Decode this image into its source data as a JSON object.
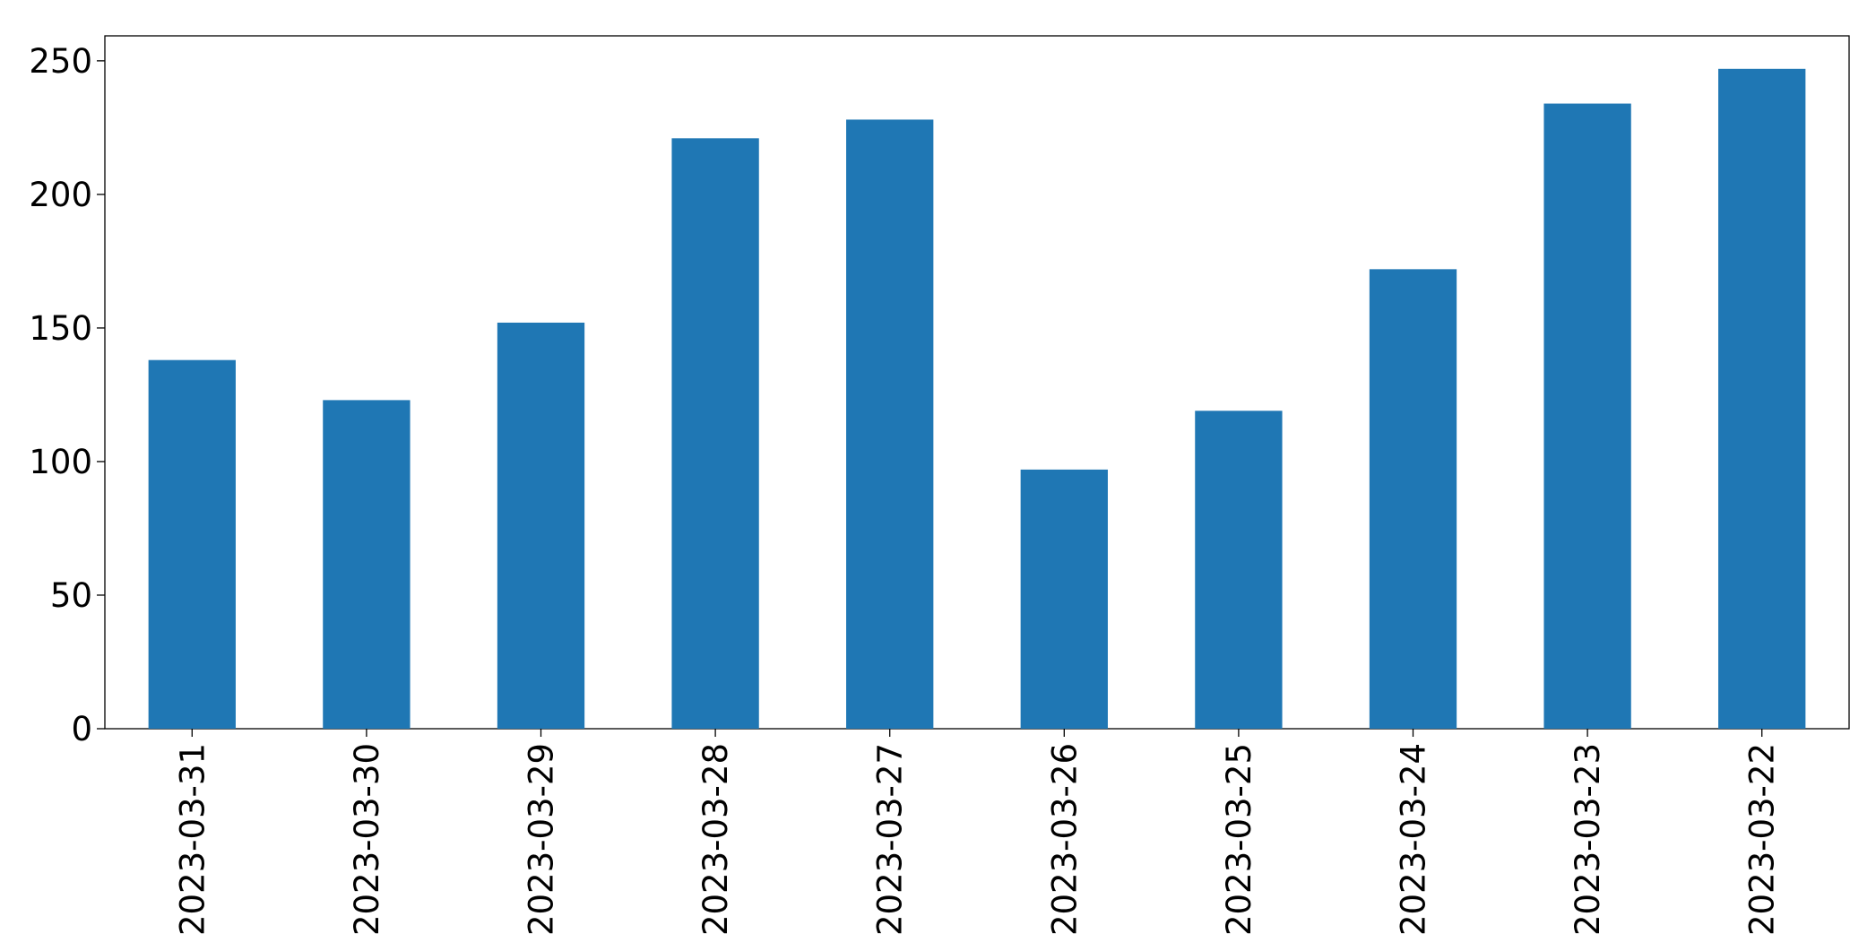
{
  "chart_data": {
    "type": "bar",
    "categories": [
      "2023-03-31",
      "2023-03-30",
      "2023-03-29",
      "2023-03-28",
      "2023-03-27",
      "2023-03-26",
      "2023-03-25",
      "2023-03-24",
      "2023-03-23",
      "2023-03-22"
    ],
    "values": [
      138,
      123,
      152,
      221,
      228,
      97,
      119,
      172,
      234,
      247
    ],
    "color": "#1f77b4",
    "ylim": [
      0,
      259.35
    ],
    "yticks": [
      0,
      50,
      100,
      150,
      200,
      250
    ],
    "grid": false
  }
}
